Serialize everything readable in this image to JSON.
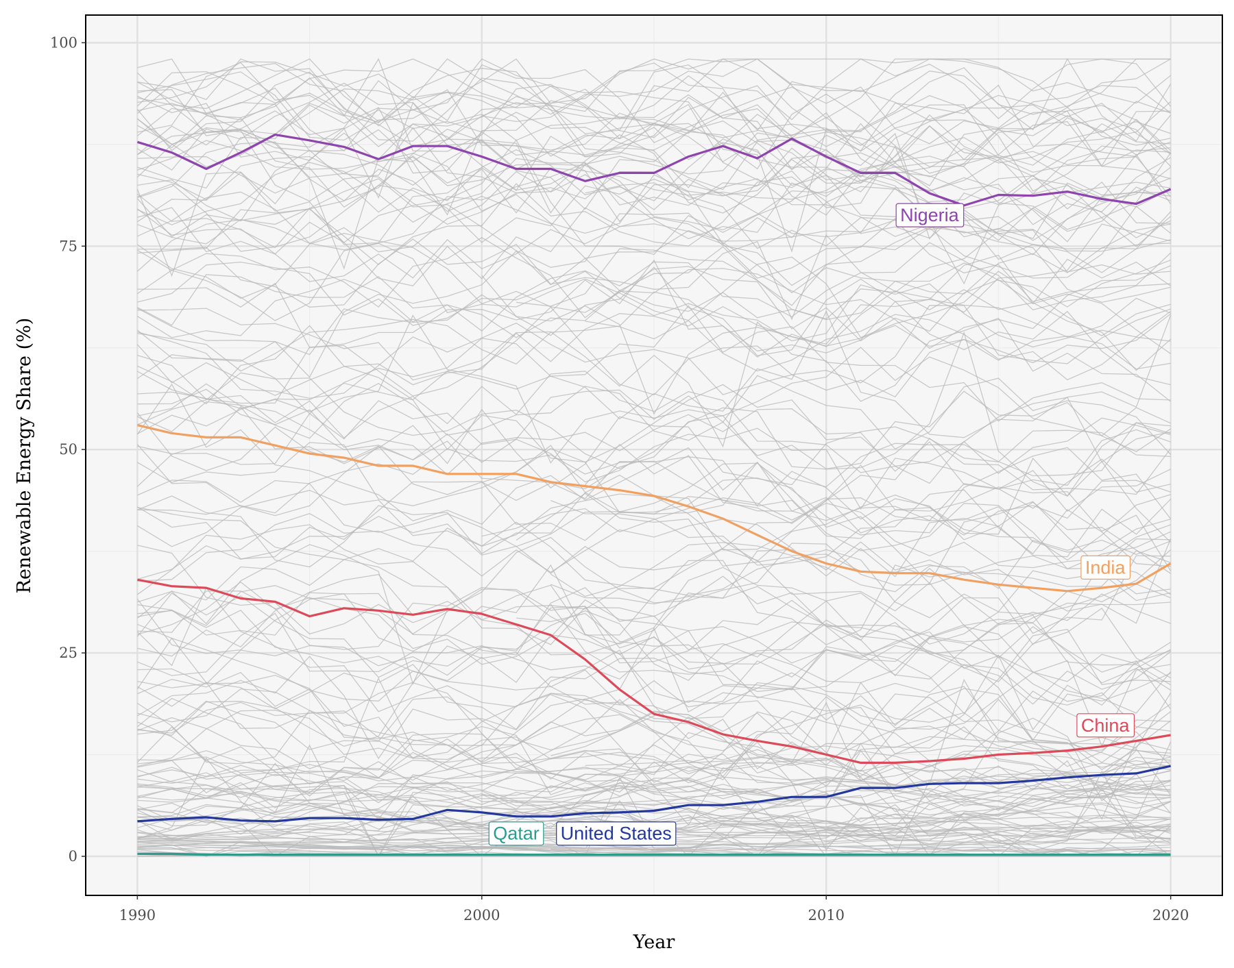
{
  "chart_data": {
    "type": "line",
    "title": "",
    "xlabel": "Year",
    "ylabel": "Renewable Energy Share (%)",
    "xlim": [
      1988.5,
      2021.5
    ],
    "ylim": [
      -4.8,
      103.4
    ],
    "x_ticks": [
      "1990",
      "2000",
      "2010",
      "2020"
    ],
    "y_ticks": [
      "0",
      "25",
      "50",
      "75",
      "100"
    ],
    "grid": true,
    "legend": "none",
    "x": [
      1990,
      1991,
      1992,
      1993,
      1994,
      1995,
      1996,
      1997,
      1998,
      1999,
      2000,
      2001,
      2002,
      2003,
      2004,
      2005,
      2006,
      2007,
      2008,
      2009,
      2010,
      2011,
      2012,
      2013,
      2014,
      2015,
      2016,
      2017,
      2018,
      2019,
      2020
    ],
    "highlighted_series": [
      {
        "name": "Nigeria",
        "color": "#8e44ad",
        "values": [
          87.8,
          86.5,
          84.5,
          86.5,
          88.7,
          88.0,
          87.2,
          85.7,
          87.3,
          87.3,
          86.0,
          84.5,
          84.5,
          83.0,
          84.0,
          84.0,
          86.0,
          87.3,
          85.8,
          88.2,
          86.0,
          84.0,
          84.0,
          81.5,
          80.0,
          81.3,
          81.2,
          81.7,
          80.8,
          80.2,
          82.0
        ],
        "label_x": 2013,
        "label_y": 78.8
      },
      {
        "name": "India",
        "color": "#f0a060",
        "values": [
          53.0,
          52.0,
          51.5,
          51.5,
          50.5,
          49.5,
          49.0,
          48.0,
          48.0,
          47.0,
          47.0,
          47.0,
          46.0,
          45.5,
          45.0,
          44.3,
          43.0,
          41.5,
          39.5,
          37.5,
          36.0,
          35.0,
          34.8,
          34.8,
          34.0,
          33.4,
          33.0,
          32.6,
          33.0,
          33.5,
          36.0
        ],
        "label_x": 2018.1,
        "label_y": 35.5
      },
      {
        "name": "China",
        "color": "#dc4a5a",
        "values": [
          34.0,
          33.2,
          33.0,
          31.7,
          31.3,
          29.5,
          30.5,
          30.2,
          29.7,
          30.4,
          29.8,
          28.5,
          27.2,
          24.2,
          20.5,
          17.5,
          16.5,
          15.0,
          14.2,
          13.5,
          12.5,
          11.5,
          11.5,
          11.7,
          12.0,
          12.5,
          12.7,
          13.0,
          13.5,
          14.2,
          14.9
        ],
        "label_x": 2018.1,
        "label_y": 16.1
      },
      {
        "name": "United States",
        "color": "#24389c",
        "values": [
          4.3,
          4.6,
          4.8,
          4.4,
          4.3,
          4.7,
          4.7,
          4.5,
          4.6,
          5.7,
          5.4,
          4.9,
          4.9,
          5.3,
          5.4,
          5.6,
          6.3,
          6.3,
          6.7,
          7.3,
          7.3,
          8.4,
          8.4,
          8.9,
          9.0,
          9.0,
          9.3,
          9.7,
          10.0,
          10.2,
          11.1
        ],
        "label_x": 2003.9,
        "label_y": 2.8
      },
      {
        "name": "Qatar",
        "color": "#2a9d8f",
        "values": [
          0.3,
          0.3,
          0.2,
          0.2,
          0.2,
          0.2,
          0.2,
          0.2,
          0.2,
          0.2,
          0.2,
          0.2,
          0.2,
          0.2,
          0.2,
          0.2,
          0.2,
          0.2,
          0.2,
          0.2,
          0.2,
          0.2,
          0.2,
          0.2,
          0.2,
          0.2,
          0.2,
          0.2,
          0.2,
          0.2,
          0.2
        ],
        "label_x": 2001.0,
        "label_y": 2.8
      }
    ],
    "background_series": {
      "color": "#b8b8b8",
      "count": 190,
      "note_hidden": "",
      "levels": [
        96.5,
        95.8,
        95,
        94.5,
        94,
        93.5,
        93,
        92.5,
        92,
        91.5,
        91,
        90.5,
        90,
        89.5,
        89,
        88.5,
        88,
        87.5,
        87,
        86.5,
        86,
        85.5,
        85,
        84,
        83,
        82,
        81,
        80,
        79,
        78,
        77,
        76,
        75,
        74,
        73,
        72,
        71.3,
        70,
        69,
        68,
        67,
        66,
        65,
        64,
        63,
        62,
        61,
        60,
        59,
        58,
        57,
        56,
        55,
        54,
        53,
        52,
        51,
        50,
        49,
        48,
        47,
        46,
        45,
        44,
        43,
        42,
        41,
        40,
        39,
        38,
        37,
        36,
        35,
        34,
        33,
        32,
        31,
        30,
        29,
        28,
        27,
        26,
        25,
        24,
        23,
        22,
        21,
        20,
        19,
        18,
        17,
        16,
        15,
        14.5,
        14,
        13.5,
        13,
        12.5,
        12,
        11.5,
        11,
        10.5,
        10,
        9.5,
        9,
        8.5,
        8.2,
        8,
        7.8,
        7.5,
        7.2,
        7,
        6.8,
        6.5,
        6.2,
        6,
        5.8,
        5.5,
        5.2,
        5,
        4.8,
        4.5,
        4.2,
        4,
        3.8,
        3.5,
        3.2,
        3,
        2.8,
        2.6,
        2.4,
        2.2,
        2,
        1.9,
        1.8,
        1.7,
        1.6,
        1.5,
        1.4,
        1.3,
        1.2,
        1.1,
        1,
        0.9,
        0.8,
        0.7,
        0.6,
        0.5,
        0.4,
        0.3,
        0.2,
        0.1,
        0.05,
        95.2,
        93.8,
        90.8,
        88.8,
        86.8,
        84.5,
        81.5,
        78.5,
        75.5,
        72.5,
        66.5,
        62.5,
        58.5,
        54.5,
        48.5,
        44.5,
        40.5,
        36.5,
        33.5,
        30.5,
        27.5,
        24.5,
        21.5,
        18.5,
        15.5,
        13.2,
        11.2,
        9.2,
        7.6,
        6.6,
        5.6,
        4.6,
        3.6,
        2.7
      ]
    }
  }
}
